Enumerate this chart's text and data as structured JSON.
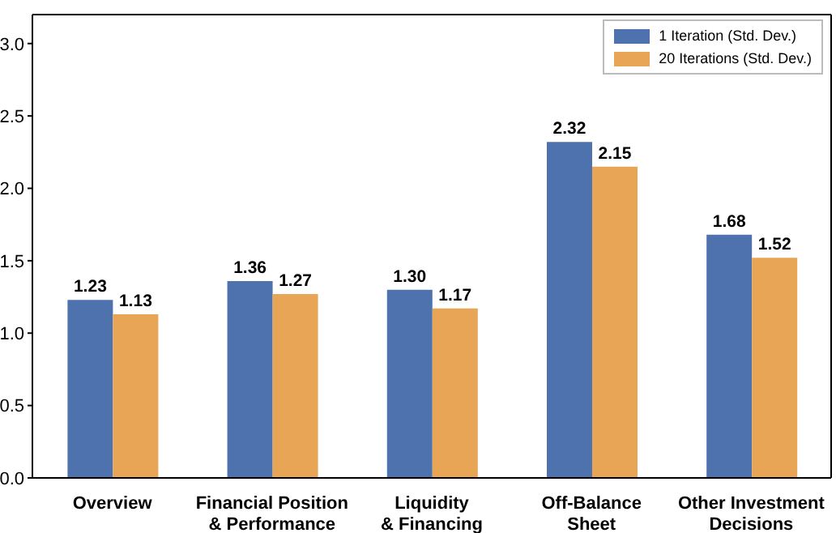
{
  "chart_data": {
    "type": "bar",
    "categories": [
      "Overview",
      "Financial Position\n& Performance",
      "Liquidity\n& Financing",
      "Off-Balance\nSheet",
      "Other Investment\nDecisions"
    ],
    "series": [
      {
        "name": "1 Iteration (Std. Dev.)",
        "color": "#4e72ae",
        "values": [
          1.23,
          1.36,
          1.3,
          2.32,
          1.68
        ],
        "value_labels": [
          "1.23",
          "1.36",
          "1.30",
          "2.32",
          "1.68"
        ]
      },
      {
        "name": "20 Iterations (Std. Dev.)",
        "color": "#e8a556",
        "values": [
          1.13,
          1.27,
          1.17,
          2.15,
          1.52
        ],
        "value_labels": [
          "1.13",
          "1.27",
          "1.17",
          "2.15",
          "1.52"
        ]
      }
    ],
    "ylim": [
      0,
      3.2
    ],
    "yticks": [
      {
        "value": 0,
        "label": "0.0"
      },
      {
        "value": 0.5,
        "label": "0.5"
      },
      {
        "value": 1,
        "label": "1.0"
      },
      {
        "value": 1.5,
        "label": "1.5"
      },
      {
        "value": 2,
        "label": "2.0"
      },
      {
        "value": 2.5,
        "label": "2.5"
      },
      {
        "value": 3,
        "label": "3.0"
      }
    ],
    "grid": false,
    "legend": "top right"
  }
}
